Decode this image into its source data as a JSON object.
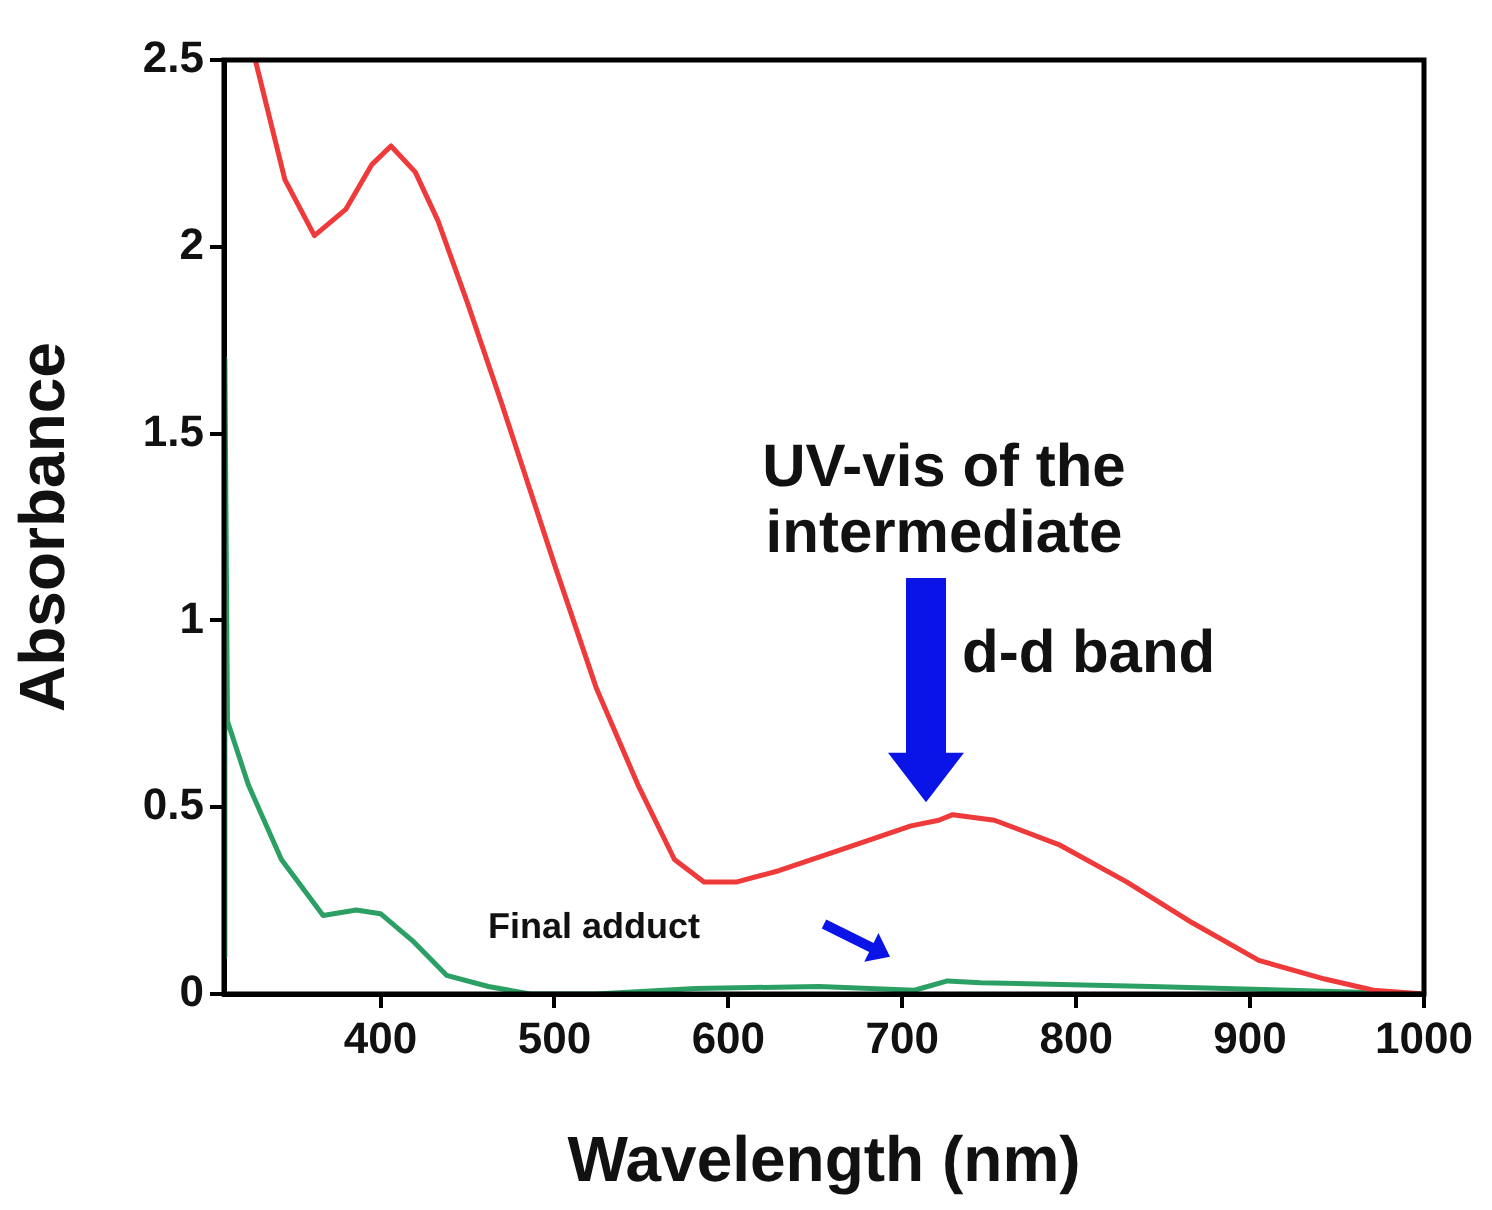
{
  "chart_data": {
    "type": "line",
    "xlabel": "Wavelength (nm)",
    "ylabel": "Absorbance",
    "xlim": [
      310,
      1000
    ],
    "xticks": [
      400,
      500,
      600,
      700,
      800,
      900,
      1000
    ],
    "ylim": [
      0,
      2.5
    ],
    "yticks": [
      0,
      0.5,
      1,
      1.5,
      2,
      2.5
    ],
    "grid": false,
    "legend": false,
    "marker": "none",
    "line_style": "solid",
    "series": [
      {
        "color": "#ee3a3a",
        "x": [
          328,
          345,
          362,
          380,
          395,
          406,
          420,
          433,
          450,
          469,
          500,
          524,
          548,
          569,
          586,
          605,
          629,
          667,
          705,
          721,
          729,
          753,
          790,
          829,
          867,
          905,
          943,
          971,
          1000
        ],
        "values": [
          2.5,
          2.18,
          2.03,
          2.1,
          2.22,
          2.27,
          2.2,
          2.07,
          1.85,
          1.59,
          1.15,
          0.82,
          0.56,
          0.36,
          0.3,
          0.3,
          0.33,
          0.39,
          0.45,
          0.465,
          0.48,
          0.465,
          0.4,
          0.3,
          0.19,
          0.09,
          0.04,
          0.01,
          0
        ]
      },
      {
        "color": "#2ca064",
        "x": [
          310,
          310.5,
          312,
          324,
          343,
          367,
          386,
          400,
          419,
          438,
          462,
          486,
          524,
          581,
          652,
          707,
          726,
          745,
          843,
          1000
        ],
        "values": [
          0.1,
          1.7,
          0.73,
          0.56,
          0.36,
          0.21,
          0.225,
          0.215,
          0.14,
          0.05,
          0.02,
          0,
          0,
          0.015,
          0.02,
          0.01,
          0.035,
          0.03,
          0.02,
          0
        ]
      }
    ],
    "annotations": [
      "UV-vis of the intermediate",
      "d-d band",
      "Final adduct"
    ]
  }
}
